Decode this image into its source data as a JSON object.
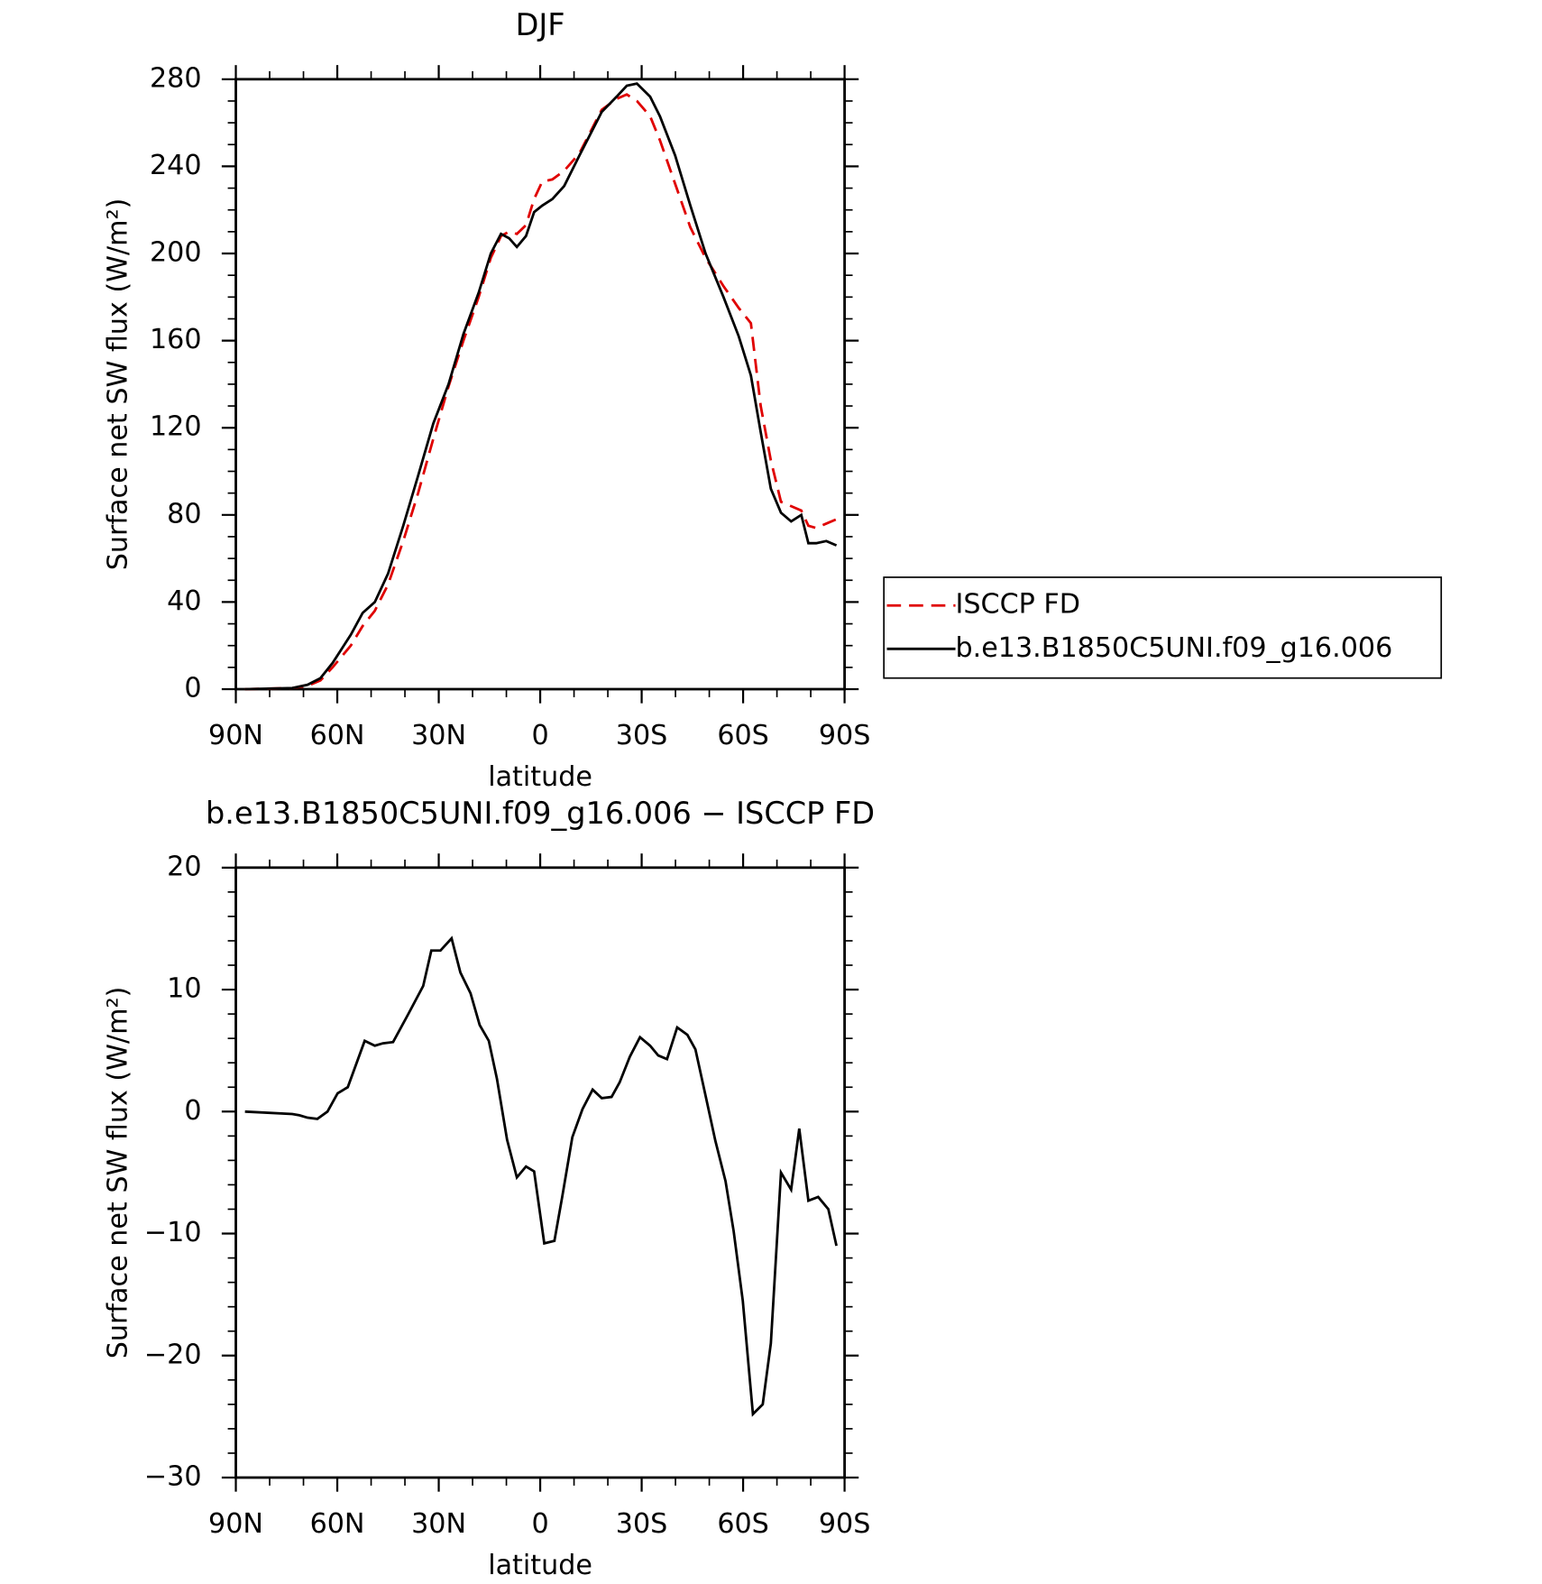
{
  "chart_data": [
    {
      "type": "line",
      "title": "DJF",
      "xlabel": "latitude",
      "ylabel": "Surface net SW flux (W/m²)",
      "x": [
        87.3,
        73.3,
        68.8,
        65.0,
        61.4,
        56.0,
        52.5,
        48.9,
        45.0,
        40.5,
        36.1,
        31.6,
        27.1,
        22.7,
        18.2,
        14.6,
        11.6,
        9.2,
        6.9,
        4.2,
        1.8,
        -0.6,
        -3.6,
        -7.1,
        -11.6,
        -18.2,
        -22.6,
        -25.6,
        -28.6,
        -32.5,
        -35.4,
        -39.9,
        -44.4,
        -48.9,
        -54.2,
        -58.7,
        -62.3,
        -65.2,
        -68.2,
        -71.2,
        -74.2,
        -77.2,
        -79.3,
        -81.6,
        -84.6,
        -87.6
      ],
      "series": [
        {
          "name": "ISCCP FD",
          "color": "#e00000",
          "dash": true,
          "values": [
            0,
            0.5,
            1.5,
            4,
            10,
            20,
            29,
            36,
            48,
            68,
            90,
            115,
            139,
            160,
            180,
            198,
            208,
            210,
            209,
            213,
            225,
            233,
            234,
            238,
            246,
            266,
            271,
            273,
            270,
            263,
            252,
            232,
            212,
            198,
            185,
            175,
            168,
            130,
            105,
            86,
            84,
            82,
            75,
            74,
            76,
            78
          ]
        },
        {
          "name": "b.e13.B1850C5UNI.f09_g16.006",
          "color": "#000000",
          "dash": false,
          "values": [
            0,
            0.5,
            2,
            5,
            12,
            25,
            35,
            40,
            53,
            75,
            98,
            122,
            140,
            163,
            182,
            200,
            209,
            207,
            203,
            208,
            219,
            222,
            225,
            231,
            245,
            265,
            272,
            277,
            278,
            272,
            263,
            245,
            222,
            200,
            180,
            162,
            144,
            118,
            92,
            81,
            77,
            80,
            67,
            67,
            68,
            66
          ]
        }
      ],
      "xlim": [
        90,
        -90
      ],
      "ylim": [
        0,
        280
      ],
      "xticks": [
        {
          "value": 90,
          "label": "90N"
        },
        {
          "value": 60,
          "label": "60N"
        },
        {
          "value": 30,
          "label": "30N"
        },
        0,
        {
          "value": -30,
          "label": "30S"
        },
        {
          "value": -60,
          "label": "60S"
        },
        {
          "value": -90,
          "label": "90S"
        }
      ],
      "yticks": [
        0,
        40,
        80,
        120,
        160,
        200,
        240,
        280
      ],
      "minor_ticks_per_interval": {
        "x": 2,
        "y": 3
      },
      "legend": "right"
    },
    {
      "type": "line",
      "title": "b.e13.B1850C5UNI.f09_g16.006 − ISCCP FD",
      "xlabel": "latitude",
      "ylabel": "Surface net SW flux (W/m²)",
      "x": [
        87.3,
        73.3,
        71.2,
        68.8,
        65.9,
        62.9,
        59.9,
        56.9,
        51.9,
        48.9,
        46.5,
        43.5,
        39.0,
        34.6,
        32.2,
        29.5,
        26.2,
        23.6,
        20.6,
        17.9,
        15.2,
        12.8,
        9.8,
        6.9,
        4.2,
        1.8,
        -1.2,
        -4.2,
        -6.5,
        -9.5,
        -12.5,
        -15.5,
        -18.2,
        -21.1,
        -23.5,
        -26.5,
        -29.5,
        -32.5,
        -34.9,
        -37.5,
        -40.5,
        -43.5,
        -45.9,
        -48.9,
        -51.8,
        -54.8,
        -57.2,
        -59.9,
        -62.9,
        -65.8,
        -68.2,
        -71.2,
        -74.2,
        -76.6,
        -79.3,
        -82.2,
        -85.2,
        -87.6
      ],
      "values": [
        0,
        -0.2,
        -0.3,
        -0.5,
        -0.6,
        0,
        1.5,
        2,
        5.8,
        5.4,
        5.6,
        5.7,
        8,
        10.3,
        13.2,
        13.2,
        14.2,
        11.4,
        9.7,
        7.1,
        5.8,
        2.7,
        -2.3,
        -5.4,
        -4.5,
        -4.9,
        -10.8,
        -10.6,
        -7,
        -2.1,
        0.2,
        1.8,
        1.1,
        1.2,
        2.4,
        4.5,
        6.1,
        5.4,
        4.6,
        4.3,
        6.9,
        6.3,
        5.1,
        1.3,
        -2.4,
        -5.7,
        -9.8,
        -15.5,
        -24.8,
        -24,
        -19,
        -5,
        -6.4,
        -1.4,
        -7.3,
        -7,
        -8,
        -11
      ],
      "color": "#000000",
      "xlim": [
        90,
        -90
      ],
      "ylim": [
        -30,
        20
      ],
      "xticks": [
        {
          "value": 90,
          "label": "90N"
        },
        {
          "value": 60,
          "label": "60N"
        },
        {
          "value": 30,
          "label": "30N"
        },
        0,
        {
          "value": -30,
          "label": "30S"
        },
        {
          "value": -60,
          "label": "60S"
        },
        {
          "value": -90,
          "label": "90S"
        }
      ],
      "yticks": [
        {
          "value": -30,
          "label": "−30"
        },
        {
          "value": -20,
          "label": "−20"
        },
        {
          "value": -10,
          "label": "−10"
        },
        0,
        10,
        20
      ],
      "minor_ticks_per_interval": {
        "x": 2,
        "y": 4
      }
    }
  ]
}
